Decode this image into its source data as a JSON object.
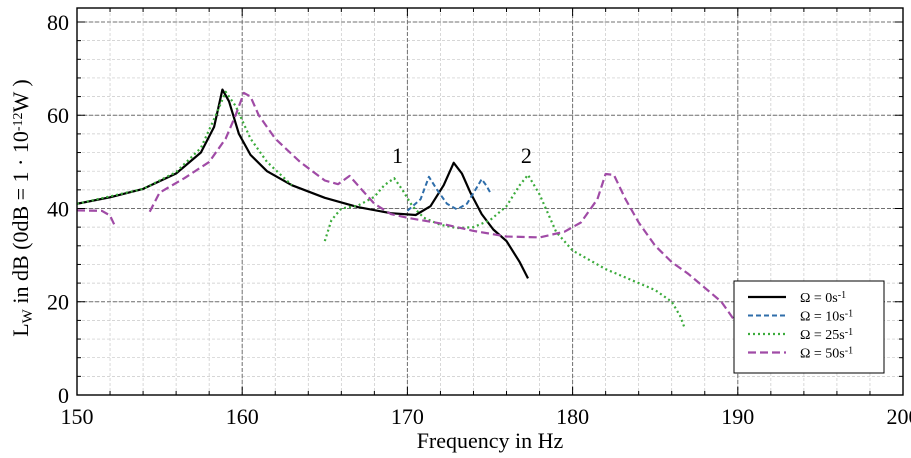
{
  "chart_data": {
    "type": "line",
    "xlabel": "Frequency in Hz",
    "ylabel": "L_W in dB (0dB = 1 · 10^-12 W )",
    "ylabel_parts": {
      "main": "L",
      "sub": "W",
      "mid": " in dB (0dB = 1 · 10",
      "sup": "-12",
      "end": "W )"
    },
    "xlim": [
      150,
      200
    ],
    "ylim": [
      0,
      83
    ],
    "xticks": [
      150,
      160,
      170,
      180,
      190,
      200
    ],
    "yticks": [
      0,
      20,
      40,
      60,
      80
    ],
    "grid": true,
    "legend_position": "bottom-right",
    "annotations": [
      {
        "text": "1",
        "x": 169.4,
        "y": 51.5
      },
      {
        "text": "2",
        "x": 177.2,
        "y": 51.5
      }
    ],
    "series": [
      {
        "name": "Ω = 0s",
        "name_sup": "-1",
        "color": "#000000",
        "dash": "",
        "width": 2.2,
        "segments": [
          [
            [
              150,
              41
            ],
            [
              152,
              42.4
            ],
            [
              154,
              44.2
            ],
            [
              156,
              47.5
            ],
            [
              157.5,
              52
            ],
            [
              158.3,
              57.5
            ],
            [
              158.8,
              65.5
            ],
            [
              159.2,
              63
            ],
            [
              159.8,
              56
            ],
            [
              160.5,
              51.5
            ],
            [
              161.5,
              48
            ],
            [
              163,
              45
            ],
            [
              165,
              42.3
            ],
            [
              167,
              40.3
            ],
            [
              169,
              39
            ],
            [
              170.5,
              38.6
            ],
            [
              171.4,
              40.5
            ],
            [
              172.2,
              45
            ],
            [
              172.8,
              49.8
            ],
            [
              173.3,
              47.5
            ],
            [
              173.8,
              43.5
            ],
            [
              174.5,
              38.8
            ],
            [
              175.2,
              35.5
            ],
            [
              176,
              33
            ],
            [
              176.8,
              28.5
            ],
            [
              177.3,
              25
            ]
          ]
        ]
      },
      {
        "name": "Ω = 10s",
        "name_sup": "-1",
        "color": "#2f6eaa",
        "dash": "5,3",
        "width": 2,
        "segments": [
          [
            [
              170,
              39.5
            ],
            [
              170.8,
              42
            ],
            [
              171.3,
              46.8
            ],
            [
              171.8,
              44
            ],
            [
              172.4,
              41
            ],
            [
              173,
              39.8
            ],
            [
              173.6,
              41
            ],
            [
              174.2,
              44.5
            ],
            [
              174.5,
              46.3
            ],
            [
              174.8,
              44.8
            ],
            [
              175,
              43.5
            ]
          ]
        ]
      },
      {
        "name": "Ω = 25s",
        "name_sup": "-1",
        "color": "#3bab3b",
        "dash": "2,3",
        "width": 2.2,
        "segments": [
          [
            [
              150,
              41
            ],
            [
              152,
              42.6
            ],
            [
              154,
              44.2
            ],
            [
              156,
              47.8
            ],
            [
              157.5,
              53
            ],
            [
              158.4,
              60
            ],
            [
              159,
              65
            ],
            [
              159.6,
              62
            ],
            [
              160.5,
              55
            ],
            [
              161.5,
              50
            ],
            [
              163,
              45
            ]
          ],
          [
            [
              165,
              33
            ],
            [
              165.4,
              37.5
            ],
            [
              166,
              40
            ],
            [
              167,
              40.6
            ],
            [
              168,
              42.5
            ],
            [
              168.6,
              45
            ],
            [
              169.2,
              46.5
            ],
            [
              169.7,
              44
            ],
            [
              170.3,
              40.5
            ],
            [
              171,
              38
            ],
            [
              172,
              36.5
            ],
            [
              173,
              35.8
            ],
            [
              174,
              36
            ],
            [
              175,
              37.5
            ],
            [
              176,
              40.5
            ],
            [
              176.8,
              45
            ],
            [
              177.3,
              47.2
            ],
            [
              178,
              43
            ],
            [
              179,
              35
            ],
            [
              180,
              31
            ],
            [
              181,
              29
            ],
            [
              182,
              27
            ],
            [
              183,
              25.5
            ],
            [
              184,
              24
            ],
            [
              185,
              22.5
            ],
            [
              186,
              20
            ],
            [
              186.5,
              17
            ],
            [
              186.8,
              14.2
            ]
          ]
        ]
      },
      {
        "name": "Ω = 50s",
        "name_sup": "-1",
        "color": "#a04ba6",
        "dash": "8,4",
        "width": 2.2,
        "segments": [
          [
            [
              150,
              39.6
            ],
            [
              151.5,
              39.5
            ],
            [
              152,
              38.5
            ],
            [
              152.3,
              36.2
            ]
          ],
          [
            [
              154.4,
              39.3
            ],
            [
              155,
              43.4
            ],
            [
              156.5,
              46.5
            ],
            [
              158,
              50
            ],
            [
              159,
              55
            ],
            [
              159.6,
              60
            ],
            [
              160.1,
              64.8
            ],
            [
              160.5,
              64
            ],
            [
              161,
              60
            ],
            [
              162,
              55
            ],
            [
              163.5,
              50
            ],
            [
              165,
              46
            ],
            [
              165.8,
              45.2
            ],
            [
              166.5,
              47
            ],
            [
              167,
              45
            ],
            [
              168,
              41
            ],
            [
              169,
              38.8
            ],
            [
              170,
              38
            ],
            [
              172,
              36.8
            ],
            [
              174,
              35.2
            ],
            [
              176,
              34
            ],
            [
              178,
              33.8
            ],
            [
              179.5,
              35
            ],
            [
              180.5,
              37
            ],
            [
              181.5,
              42
            ],
            [
              182,
              47.4
            ],
            [
              182.5,
              47.2
            ],
            [
              183.2,
              42
            ],
            [
              184,
              37
            ],
            [
              185,
              32
            ],
            [
              186,
              28.5
            ],
            [
              187,
              26
            ],
            [
              188,
              23
            ],
            [
              189,
              20
            ],
            [
              190,
              15
            ],
            [
              190.2,
              14.5
            ]
          ]
        ]
      }
    ]
  }
}
